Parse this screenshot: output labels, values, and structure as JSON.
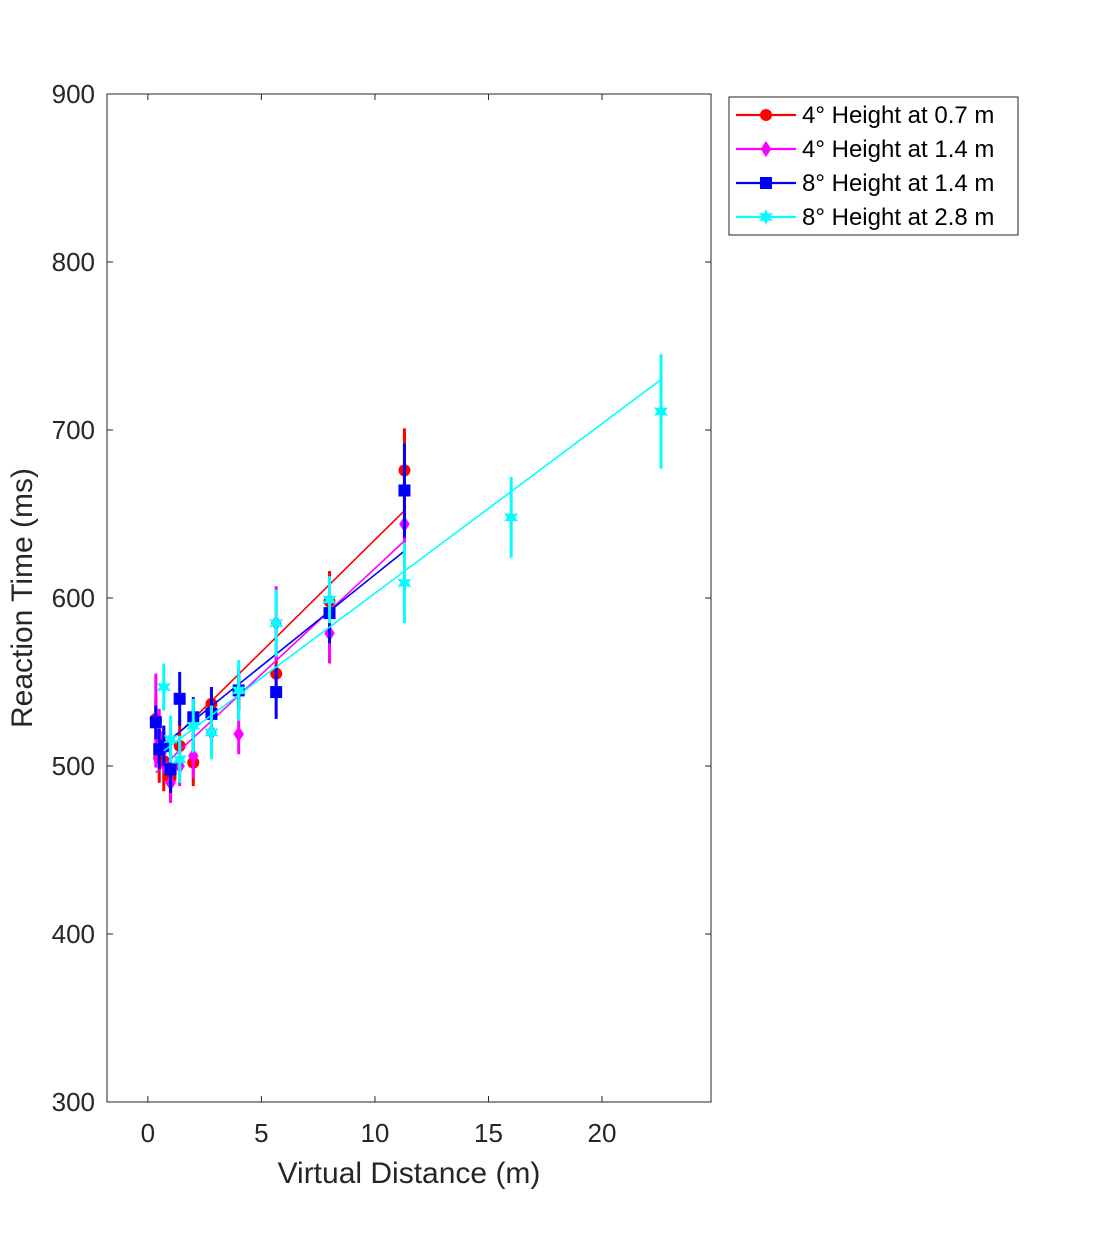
{
  "chart_data": {
    "type": "scatter",
    "xlabel": "Virtual Distance (m)",
    "ylabel": "Reaction Time (ms)",
    "xlim": [
      -1.8,
      24.8
    ],
    "ylim": [
      300,
      900
    ],
    "xticks": [
      0,
      5,
      10,
      15,
      20
    ],
    "yticks": [
      300,
      400,
      500,
      600,
      700,
      800,
      900
    ],
    "grid": false,
    "legend_position": "outside-top-right",
    "series": [
      {
        "name": "4° Height at 0.7 m",
        "color": "#ff0000",
        "marker": "circle",
        "x": [
          0.35,
          0.5,
          0.7,
          1.0,
          1.4,
          2.0,
          2.8,
          4.0,
          5.65,
          8.0,
          11.3
        ],
        "y": [
          528,
          505,
          503,
          493,
          512,
          502,
          537,
          545,
          555,
          598,
          676
        ],
        "err": [
          12,
          15,
          18,
          14,
          16,
          14,
          10,
          12,
          14,
          18,
          25
        ],
        "fit": [
          [
            0.35,
            506
          ],
          [
            11.3,
            652
          ]
        ]
      },
      {
        "name": "4° Height at 1.4 m",
        "color": "#ff00ff",
        "marker": "diamond",
        "x": [
          0.35,
          0.5,
          0.7,
          1.0,
          1.4,
          2.0,
          2.8,
          4.0,
          5.65,
          8.0,
          11.3
        ],
        "y": [
          527,
          518,
          510,
          490,
          500,
          506,
          520,
          519,
          585,
          579,
          644
        ],
        "err": [
          28,
          16,
          14,
          12,
          12,
          13,
          12,
          12,
          22,
          18,
          16
        ],
        "fit": [
          [
            0.35,
            496
          ],
          [
            11.3,
            634
          ]
        ]
      },
      {
        "name": "8° Height at 1.4 m",
        "color": "#0000ff",
        "marker": "square",
        "x": [
          0.35,
          0.5,
          0.7,
          1.0,
          1.4,
          2.0,
          2.8,
          4.0,
          5.65,
          8.0,
          11.3
        ],
        "y": [
          526,
          510,
          512,
          498,
          540,
          529,
          531,
          545,
          544,
          591,
          664
        ],
        "err": [
          10,
          12,
          12,
          14,
          16,
          12,
          16,
          12,
          16,
          18,
          28
        ],
        "fit": [
          [
            0.35,
            509
          ],
          [
            11.3,
            628
          ]
        ]
      },
      {
        "name": "8° Height at 2.8 m",
        "color": "#00ffff",
        "marker": "hexagram",
        "x": [
          0.7,
          1.0,
          1.4,
          2.0,
          2.8,
          4.0,
          5.65,
          8.0,
          11.3,
          16.0,
          22.6
        ],
        "y": [
          547,
          516,
          504,
          524,
          520,
          545,
          585,
          599,
          609,
          648,
          711
        ],
        "err": [
          14,
          14,
          14,
          16,
          16,
          18,
          20,
          14,
          24,
          24,
          34
        ],
        "fit": [
          [
            0.7,
            509
          ],
          [
            22.6,
            730
          ]
        ]
      }
    ]
  }
}
